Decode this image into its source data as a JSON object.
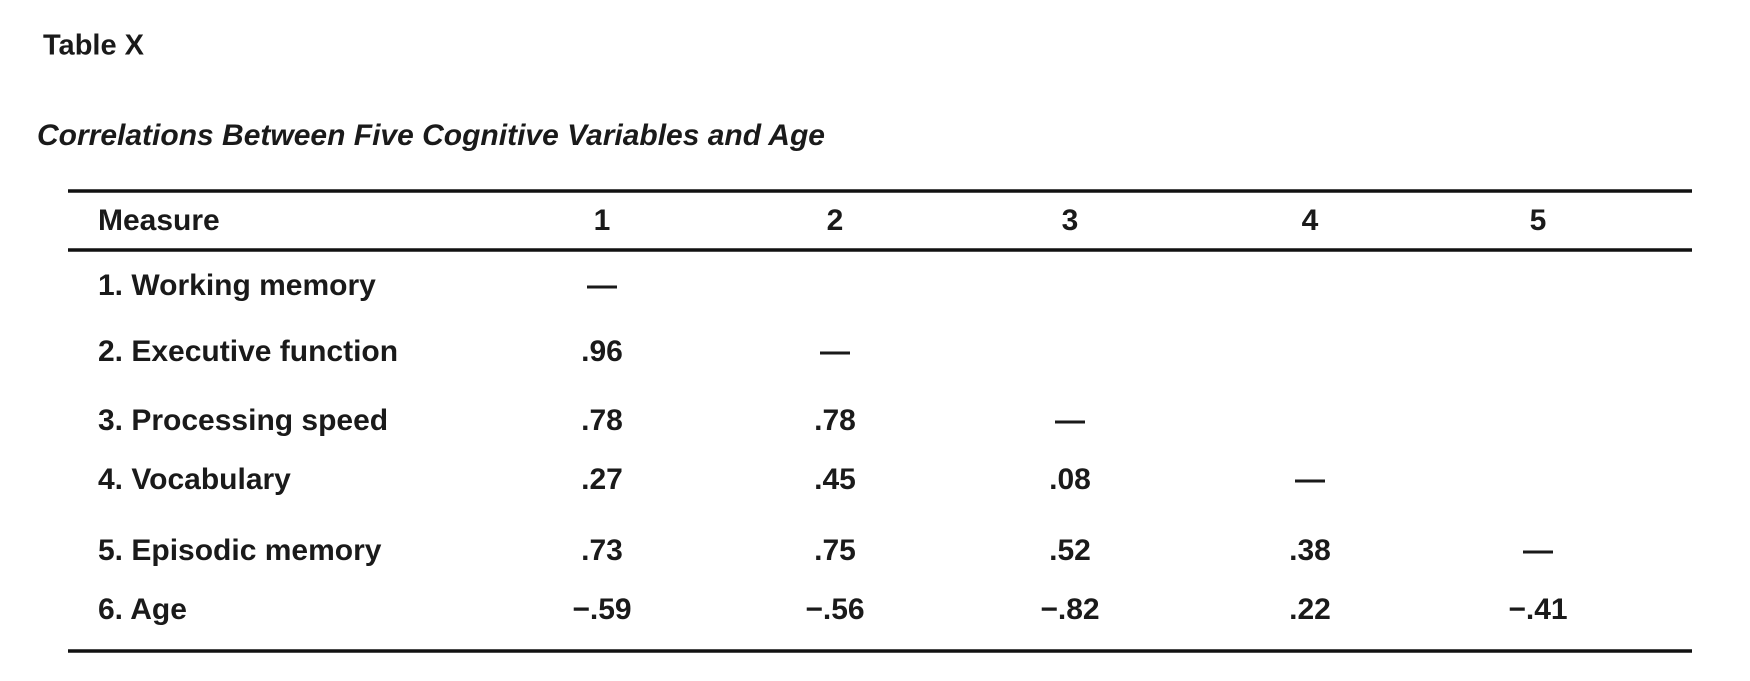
{
  "header": {
    "label": "Table X",
    "title": "Correlations Between Five Cognitive Variables and Age"
  },
  "table": {
    "columns": [
      "Measure",
      "1",
      "2",
      "3",
      "4",
      "5"
    ],
    "rows": [
      [
        "1. Working memory",
        "—",
        null,
        null,
        null,
        null
      ],
      [
        "2. Executive function",
        ".96",
        "—",
        null,
        null,
        null
      ],
      [
        "3. Processing speed",
        ".78",
        ".78",
        "—",
        null,
        null
      ],
      [
        "4. Vocabulary",
        ".27",
        ".45",
        ".08",
        "—",
        null
      ],
      [
        "5. Episodic memory",
        ".73",
        ".75",
        ".52",
        ".38",
        "—"
      ],
      [
        "6. Age",
        "−.59",
        "−.56",
        "−.82",
        ".22",
        "−.41"
      ]
    ]
  }
}
